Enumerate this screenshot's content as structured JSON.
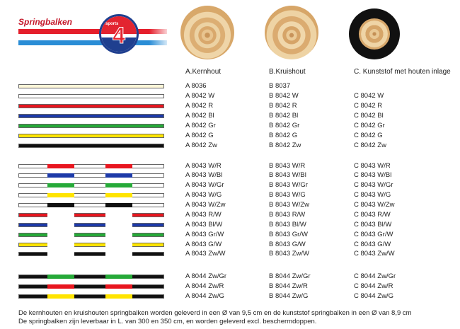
{
  "brand": {
    "title": "Springbalken",
    "badge_number": "4",
    "badge_text": "sports"
  },
  "colors": {
    "W": "#ffffff",
    "R": "#e8161f",
    "Bl": "#1d3aa8",
    "Gr": "#26a938",
    "G": "#ffe400",
    "Zw": "#111111",
    "cream": "#fdf6d8"
  },
  "columns": [
    {
      "label": "A.Kernhout"
    },
    {
      "label": "B.Kruishout"
    },
    {
      "label": "C. Kunststof met houten inlage"
    }
  ],
  "rows": [
    {
      "bar": [
        "cream"
      ],
      "a": "A 8036",
      "b": "B 8037",
      "c": ""
    },
    {
      "bar": [
        "W"
      ],
      "a": "A 8042 W",
      "b": "B 8042 W",
      "c": "C 8042 W"
    },
    {
      "bar": [
        "R"
      ],
      "a": "A 8042 R",
      "b": "B 8042 R",
      "c": "C 8042 R"
    },
    {
      "bar": [
        "Bl"
      ],
      "a": "A 8042 Bl",
      "b": "B 8042 Bl",
      "c": "C 8042 Bl"
    },
    {
      "bar": [
        "Gr"
      ],
      "a": "A 8042 Gr",
      "b": "B 8042 Gr",
      "c": "C 8042 Gr"
    },
    {
      "bar": [
        "G"
      ],
      "a": "A 8042 G",
      "b": "B 8042 G",
      "c": "C 8042 G"
    },
    {
      "bar": [
        "Zw"
      ],
      "a": "A 8042 Zw",
      "b": "B 8042 Zw",
      "c": "C 8042 Zw"
    },
    {
      "bar": [
        "W",
        "R"
      ],
      "a": "A 8043 W/R",
      "b": "B 8043 W/R",
      "c": "C 8043 W/R"
    },
    {
      "bar": [
        "W",
        "Bl"
      ],
      "a": "A 8043 W/Bl",
      "b": "B 8043 W/Bl",
      "c": "C 8043 W/Bl"
    },
    {
      "bar": [
        "W",
        "Gr"
      ],
      "a": "A 8043 W/Gr",
      "b": "B 8043 W/Gr",
      "c": "C 8043 W/Gr"
    },
    {
      "bar": [
        "W",
        "G"
      ],
      "a": "A 8043 W/G",
      "b": "B 8043 W/G",
      "c": "C 8043 W/G"
    },
    {
      "bar": [
        "W",
        "Zw"
      ],
      "a": "A 8043 W/Zw",
      "b": "B 8043 W/Zw",
      "c": "C 8043 W/Zw"
    },
    {
      "bar": [
        "R",
        "W"
      ],
      "a": "A 8043 R/W",
      "b": "B 8043 R/W",
      "c": "C 8043 R/W"
    },
    {
      "bar": [
        "Bl",
        "W"
      ],
      "a": "A 8043 Bl/W",
      "b": "B 8043 Bl/W",
      "c": "C 8043 Bl/W"
    },
    {
      "bar": [
        "Gr",
        "W"
      ],
      "a": "A 8043 Gr/W",
      "b": "B 8043 Gr/W",
      "c": "C 8043 Gr/W"
    },
    {
      "bar": [
        "G",
        "W"
      ],
      "a": "A 8043 G/W",
      "b": "B 8043 G/W",
      "c": "C 8043 G/W"
    },
    {
      "bar": [
        "Zw",
        "W"
      ],
      "a": "A 8043 Zw/W",
      "b": "B 8043 Zw/W",
      "c": "C 8043 Zw/W"
    },
    {
      "bar": [
        "Zw",
        "Gr"
      ],
      "a": "A 8044 Zw/Gr",
      "b": "B 8044 Zw/Gr",
      "c": "C 8044 Zw/Gr"
    },
    {
      "bar": [
        "Zw",
        "R"
      ],
      "a": "A 8044 Zw/R",
      "b": "B 8044 Zw/R",
      "c": "C 8044 Zw/R"
    },
    {
      "bar": [
        "Zw",
        "G"
      ],
      "a": "A 8044 Zw/G",
      "b": "B 8044 Zw/G",
      "c": "C 8044 Zw/G"
    }
  ],
  "footer": [
    "De kernhouten en kruishouten springbalken worden geleverd in een Ø van 9,5 cm en de kunststof springbalken in een Ø van 8,9 cm",
    "De springbalken zijn leverbaar in L. van 300 en 350 cm, en worden geleverd excl. beschermdoppen."
  ]
}
